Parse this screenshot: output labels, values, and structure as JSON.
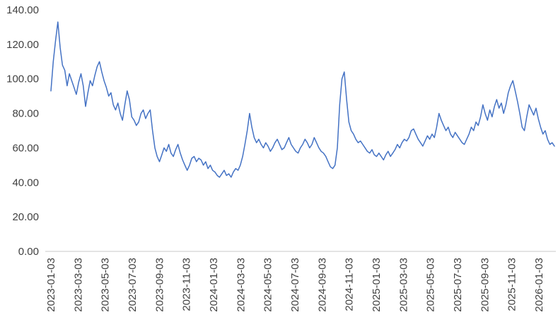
{
  "chart_data": {
    "type": "line",
    "grid": false,
    "legend": "none",
    "line_color": "#4472C4",
    "axis_line_color": "#C9C9C9",
    "label_color": "#404040",
    "ylim": [
      0,
      140
    ],
    "y_ticks": [
      0,
      20,
      40,
      60,
      80,
      100,
      120,
      140
    ],
    "y_tick_labels": [
      "0.00",
      "20.00",
      "40.00",
      "60.00",
      "80.00",
      "100.00",
      "120.00",
      "140.00"
    ],
    "x_label_rotation": -90,
    "x_tick_labels": [
      "2023-01-03",
      "2023-03-03",
      "2023-05-03",
      "2023-07-03",
      "2023-09-03",
      "2023-11-03",
      "2024-01-03",
      "2024-03-03",
      "2024-05-03",
      "2024-07-03",
      "2024-09-03",
      "2024-11-03",
      "2025-01-03",
      "2025-03-03",
      "2025-05-03",
      "2025-07-03",
      "2025-09-03",
      "2025-11-03",
      "2026-01-03"
    ],
    "values": [
      93,
      110,
      122,
      133,
      118,
      108,
      105,
      96,
      103,
      99,
      95,
      91,
      98,
      103,
      96,
      84,
      92,
      99,
      96,
      102,
      107,
      110,
      104,
      99,
      95,
      90,
      92,
      85,
      82,
      86,
      80,
      76,
      85,
      93,
      88,
      78,
      76,
      73,
      75,
      80,
      82,
      77,
      80,
      82,
      70,
      60,
      55,
      52,
      56,
      60,
      58,
      62,
      57,
      55,
      59,
      62,
      57,
      53,
      50,
      47,
      50,
      54,
      55,
      52,
      54,
      53,
      50,
      52,
      48,
      50,
      47,
      46,
      44,
      43,
      45,
      47,
      44,
      45,
      43,
      46,
      48,
      47,
      50,
      55,
      62,
      70,
      80,
      72,
      66,
      63,
      65,
      62,
      60,
      63,
      61,
      58,
      60,
      63,
      65,
      62,
      59,
      60,
      63,
      66,
      62,
      60,
      58,
      57,
      60,
      62,
      65,
      63,
      60,
      62,
      66,
      63,
      60,
      58,
      57,
      55,
      52,
      49,
      48,
      50,
      60,
      85,
      100,
      104,
      88,
      75,
      70,
      68,
      65,
      63,
      64,
      62,
      60,
      58,
      57,
      59,
      56,
      55,
      57,
      55,
      53,
      56,
      58,
      55,
      57,
      59,
      62,
      60,
      63,
      65,
      64,
      66,
      70,
      71,
      68,
      65,
      63,
      61,
      64,
      67,
      65,
      68,
      66,
      72,
      80,
      76,
      73,
      70,
      72,
      68,
      66,
      69,
      67,
      65,
      63,
      62,
      65,
      68,
      72,
      70,
      75,
      73,
      78,
      85,
      80,
      76,
      82,
      78,
      84,
      88,
      83,
      86,
      80,
      85,
      92,
      96,
      99,
      93,
      87,
      80,
      72,
      70,
      78,
      85,
      82,
      79,
      83,
      77,
      72,
      68,
      70,
      65,
      62,
      63,
      61
    ]
  }
}
